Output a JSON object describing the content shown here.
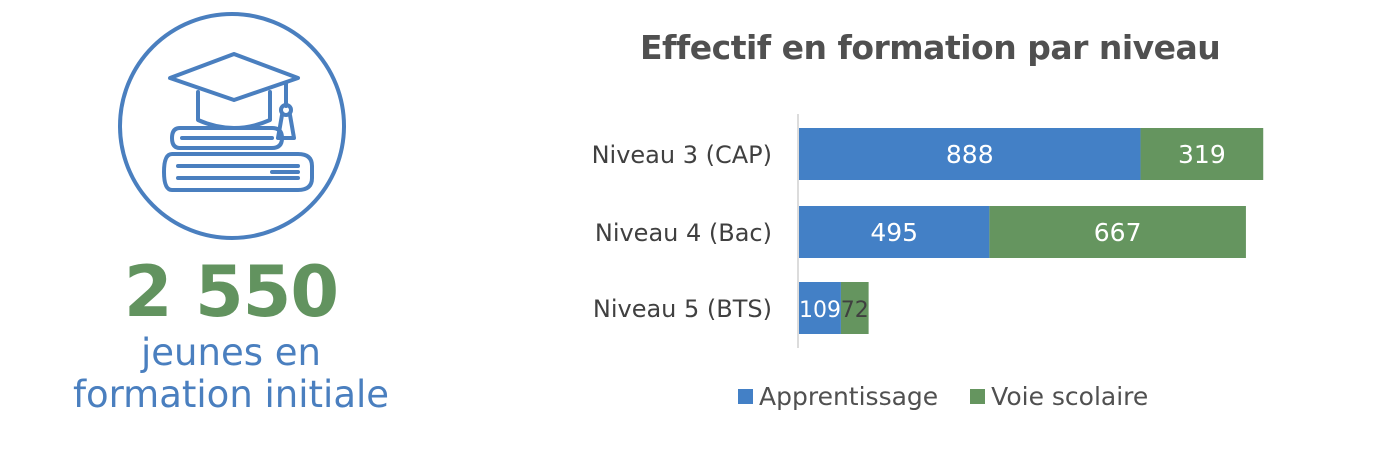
{
  "left": {
    "icon": "graduation-cap-books-icon",
    "total": "2 550",
    "caption_line1": "jeunes en",
    "caption_line2": "formation initiale",
    "colors": {
      "accent_blue": "#4a7fbf",
      "accent_green": "#62935f"
    }
  },
  "chart_data": {
    "type": "bar",
    "orientation": "horizontal",
    "stacked": true,
    "title": "Effectif en formation par niveau",
    "categories": [
      "Niveau 3 (CAP)",
      "Niveau 4 (Bac)",
      "Niveau 5 (BTS)"
    ],
    "series": [
      {
        "name": "Apprentissage",
        "values": [
          888,
          495,
          109
        ],
        "color": "#4380c6"
      },
      {
        "name": "Voie scolaire",
        "values": [
          319,
          667,
          72
        ],
        "color": "#65955f"
      }
    ],
    "xlim": [
      0,
      1300
    ],
    "grid": false,
    "legend_position": "bottom"
  }
}
